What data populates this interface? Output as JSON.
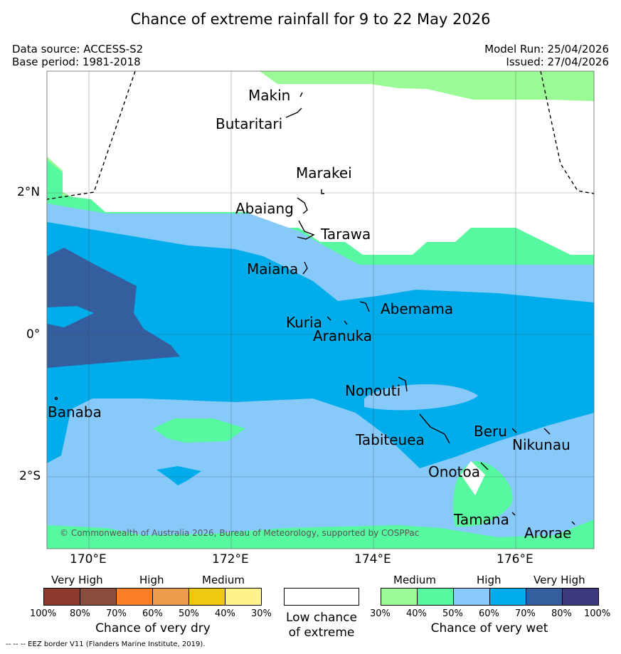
{
  "title": "Chance of extreme rainfall for 9 to 22 May 2026",
  "data_source": "Data source: ACCESS-S2",
  "base_period": "Base period: 1981-2018",
  "model_run": "Model Run: 25/04/2026",
  "issued": "Issued: 27/04/2026",
  "copyright": "© Commonwealth of Australia 2026, Bureau of Meteorology, supported by COSPPac",
  "footer": "--  --  -- EEZ border V11 (Flanders Marine Institute, 2019).",
  "axes": {
    "x_ticks": [
      "170°E",
      "172°E",
      "174°E",
      "176°E"
    ],
    "y_ticks": [
      "2°N",
      "0°",
      "2°S"
    ]
  },
  "islands": [
    "Makin",
    "Butaritari",
    "Marakei",
    "Abaiang",
    "Tarawa",
    "Maiana",
    "Abemama",
    "Kuria",
    "Aranuka",
    "Banaba",
    "Nonouti",
    "Tabiteuea",
    "Beru",
    "Nikunau",
    "Onotoa",
    "Tamana",
    "Arorae"
  ],
  "legend": {
    "dry": {
      "categories": [
        "Very High",
        "High",
        "Medium"
      ],
      "ticks": [
        "100%",
        "80%",
        "70%",
        "60%",
        "50%",
        "40%",
        "30%"
      ],
      "caption": "Chance of very dry",
      "colors": [
        "#8e3a2d",
        "#8b4e3c",
        "#fb7f27",
        "#ee9b4d",
        "#eec90f",
        "#fff38a"
      ]
    },
    "low": {
      "caption_line1": "Low chance",
      "caption_line2": "of extreme"
    },
    "wet": {
      "categories": [
        "Medium",
        "High",
        "Very High"
      ],
      "ticks": [
        "30%",
        "40%",
        "50%",
        "60%",
        "70%",
        "80%",
        "100%"
      ],
      "caption": "Chance of very wet",
      "colors": [
        "#9afa95",
        "#58f8a0",
        "#87cafa",
        "#00acea",
        "#345e9e",
        "#3b3b7d"
      ]
    }
  }
}
